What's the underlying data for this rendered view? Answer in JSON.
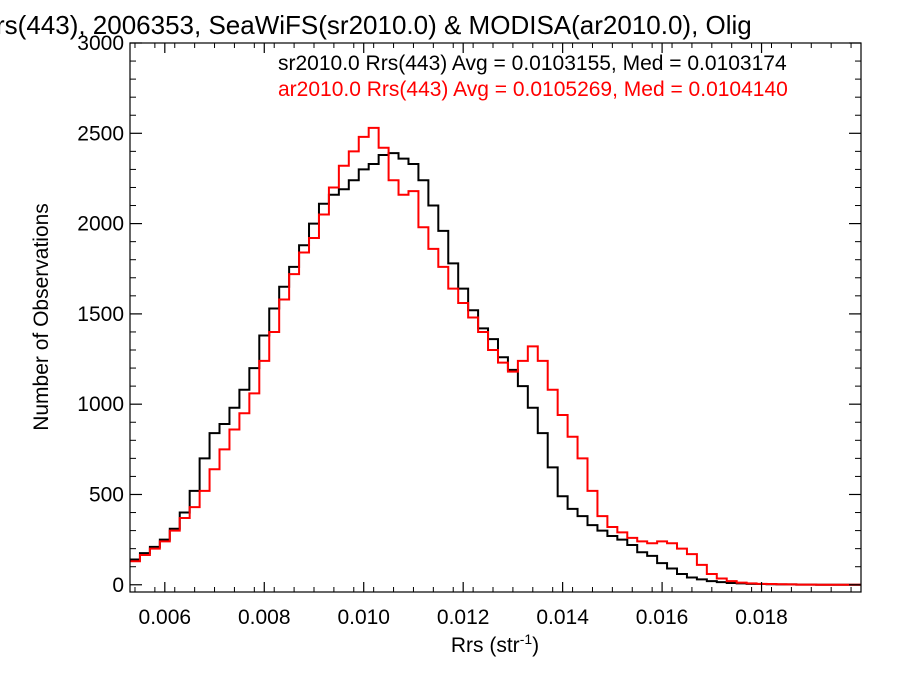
{
  "chart_data": {
    "type": "line",
    "step": true,
    "title": "rs(443), 2006353, SeaWiFS(sr2010.0) & MODISA(ar2010.0), Olig",
    "xlabel": "Rrs (str",
    "xlabel_sup": "-1",
    "xlabel_end": ")",
    "ylabel": "Number of Observations",
    "xlim": [
      0.0053,
      0.02
    ],
    "ylim": [
      -40,
      3000
    ],
    "x_ticks": [
      0.006,
      0.008,
      0.01,
      0.012,
      0.014,
      0.016,
      0.018
    ],
    "x_tick_labels": [
      "0.006",
      "0.008",
      "0.010",
      "0.012",
      "0.014",
      "0.016",
      "0.018"
    ],
    "y_ticks": [
      0,
      500,
      1000,
      1500,
      2000,
      2500,
      3000
    ],
    "y_tick_labels": [
      "0",
      "500",
      "1000",
      "1500",
      "2000",
      "2500",
      "3000"
    ],
    "grid": false,
    "legend_position": "top-right",
    "colors": {
      "sr": "#000000",
      "ar": "#ff0000"
    },
    "series": [
      {
        "name": "sr2010.0 Rrs(443) Avg = 0.0103155, Med = 0.0103174",
        "color": "#000000",
        "x": [
          0.0053,
          0.0055,
          0.0057,
          0.0059,
          0.0061,
          0.0063,
          0.0065,
          0.0067,
          0.0069,
          0.0071,
          0.0073,
          0.0075,
          0.0077,
          0.0079,
          0.0081,
          0.0083,
          0.0085,
          0.0087,
          0.0089,
          0.0091,
          0.0093,
          0.0095,
          0.0097,
          0.0099,
          0.0101,
          0.0103,
          0.0105,
          0.0107,
          0.0109,
          0.0111,
          0.0113,
          0.0115,
          0.0117,
          0.0119,
          0.0121,
          0.0123,
          0.0125,
          0.0127,
          0.0129,
          0.0131,
          0.0133,
          0.0135,
          0.0137,
          0.0139,
          0.0141,
          0.0143,
          0.0145,
          0.0147,
          0.0149,
          0.0151,
          0.0153,
          0.0155,
          0.0157,
          0.0159,
          0.0161,
          0.0163,
          0.0165,
          0.0167,
          0.0169,
          0.0171,
          0.0173,
          0.0175,
          0.0177,
          0.0179,
          0.0181,
          0.0183,
          0.0185,
          0.0187,
          0.0189,
          0.0191,
          0.0193,
          0.0195,
          0.0197,
          0.0199
        ],
        "y": [
          140,
          175,
          210,
          250,
          310,
          400,
          520,
          700,
          840,
          890,
          980,
          1080,
          1200,
          1380,
          1530,
          1650,
          1760,
          1880,
          2000,
          2110,
          2160,
          2190,
          2240,
          2300,
          2330,
          2380,
          2390,
          2360,
          2330,
          2240,
          2100,
          1960,
          1780,
          1640,
          1520,
          1420,
          1360,
          1260,
          1190,
          1100,
          980,
          840,
          650,
          490,
          420,
          380,
          330,
          300,
          270,
          250,
          220,
          180,
          160,
          120,
          90,
          60,
          40,
          30,
          20,
          15,
          10,
          8,
          5,
          4,
          3,
          2,
          2,
          1,
          1,
          0,
          0,
          0,
          0,
          0
        ]
      },
      {
        "name": "ar2010.0 Rrs(443) Avg = 0.0105269, Med = 0.0104140",
        "color": "#ff0000",
        "x": [
          0.0053,
          0.0055,
          0.0057,
          0.0059,
          0.0061,
          0.0063,
          0.0065,
          0.0067,
          0.0069,
          0.0071,
          0.0073,
          0.0075,
          0.0077,
          0.0079,
          0.0081,
          0.0083,
          0.0085,
          0.0087,
          0.0089,
          0.0091,
          0.0093,
          0.0095,
          0.0097,
          0.0099,
          0.0101,
          0.0103,
          0.0105,
          0.0107,
          0.0109,
          0.0111,
          0.0113,
          0.0115,
          0.0117,
          0.0119,
          0.0121,
          0.0123,
          0.0125,
          0.0127,
          0.0129,
          0.0131,
          0.0133,
          0.0135,
          0.0137,
          0.0139,
          0.0141,
          0.0143,
          0.0145,
          0.0147,
          0.0149,
          0.0151,
          0.0153,
          0.0155,
          0.0157,
          0.0159,
          0.0161,
          0.0163,
          0.0165,
          0.0167,
          0.0169,
          0.0171,
          0.0173,
          0.0175,
          0.0177,
          0.0179,
          0.0181,
          0.0183,
          0.0185,
          0.0187,
          0.0189,
          0.0191,
          0.0193,
          0.0195,
          0.0197,
          0.0199
        ],
        "y": [
          130,
          165,
          200,
          240,
          300,
          370,
          430,
          520,
          640,
          750,
          860,
          950,
          1060,
          1240,
          1400,
          1580,
          1720,
          1840,
          1920,
          2050,
          2200,
          2320,
          2400,
          2480,
          2530,
          2420,
          2240,
          2160,
          2180,
          1980,
          1860,
          1760,
          1640,
          1560,
          1480,
          1400,
          1300,
          1230,
          1180,
          1240,
          1320,
          1240,
          1080,
          940,
          820,
          700,
          520,
          380,
          320,
          290,
          260,
          240,
          230,
          240,
          230,
          200,
          170,
          110,
          60,
          35,
          20,
          12,
          8,
          5,
          4,
          3,
          2,
          1,
          1,
          0,
          0,
          0,
          0,
          0
        ]
      }
    ]
  }
}
